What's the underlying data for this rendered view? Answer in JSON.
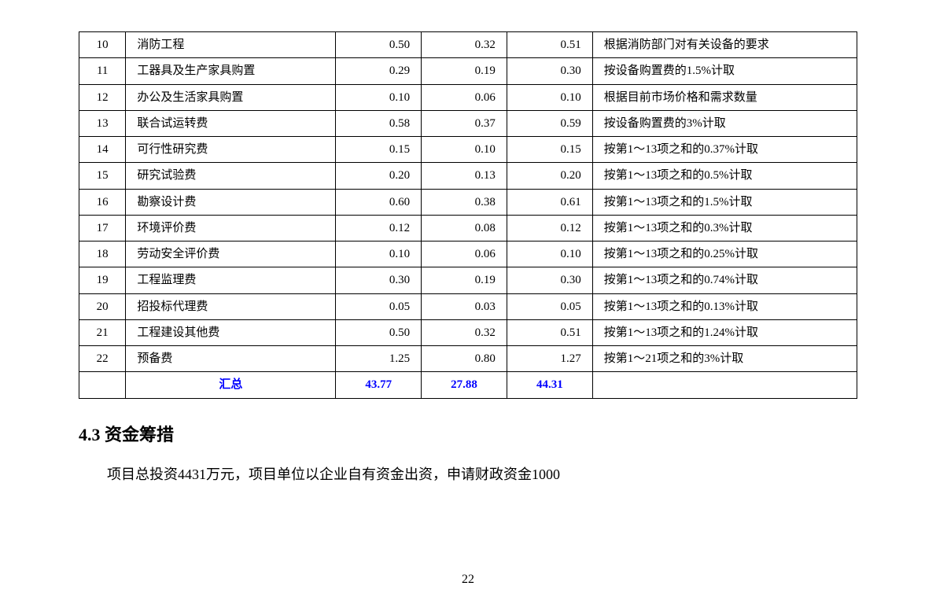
{
  "table": {
    "border_color": "#000000",
    "font_family": "SimSun",
    "font_size": 15,
    "summary_color": "#0000ff",
    "rows": [
      {
        "idx": "10",
        "proj": "消防工程",
        "v1": "0.50",
        "v2": "0.32",
        "v3": "0.51",
        "note": "根据消防部门对有关设备的要求"
      },
      {
        "idx": "11",
        "proj": "工器具及生产家具购置",
        "v1": "0.29",
        "v2": "0.19",
        "v3": "0.30",
        "note": "按设备购置费的1.5%计取"
      },
      {
        "idx": "12",
        "proj": "办公及生活家具购置",
        "v1": "0.10",
        "v2": "0.06",
        "v3": "0.10",
        "note": "根据目前市场价格和需求数量"
      },
      {
        "idx": "13",
        "proj": "联合试运转费",
        "v1": "0.58",
        "v2": "0.37",
        "v3": "0.59",
        "note": "按设备购置费的3%计取"
      },
      {
        "idx": "14",
        "proj": "可行性研究费",
        "v1": "0.15",
        "v2": "0.10",
        "v3": "0.15",
        "note": "按第1～13项之和的0.37%计取"
      },
      {
        "idx": "15",
        "proj": "研究试验费",
        "v1": "0.20",
        "v2": "0.13",
        "v3": "0.20",
        "note": "按第1～13项之和的0.5%计取"
      },
      {
        "idx": "16",
        "proj": "勘察设计费",
        "v1": "0.60",
        "v2": "0.38",
        "v3": "0.61",
        "note": "按第1～13项之和的1.5%计取"
      },
      {
        "idx": "17",
        "proj": "环境评价费",
        "v1": "0.12",
        "v2": "0.08",
        "v3": "0.12",
        "note": "按第1～13项之和的0.3%计取"
      },
      {
        "idx": "18",
        "proj": "劳动安全评价费",
        "v1": "0.10",
        "v2": "0.06",
        "v3": "0.10",
        "note": "按第1～13项之和的0.25%计取"
      },
      {
        "idx": "19",
        "proj": "工程监理费",
        "v1": "0.30",
        "v2": "0.19",
        "v3": "0.30",
        "note": "按第1～13项之和的0.74%计取"
      },
      {
        "idx": "20",
        "proj": "招投标代理费",
        "v1": "0.05",
        "v2": "0.03",
        "v3": "0.05",
        "note": "按第1～13项之和的0.13%计取"
      },
      {
        "idx": "21",
        "proj": "工程建设其他费",
        "v1": "0.50",
        "v2": "0.32",
        "v3": "0.51",
        "note": "按第1～13项之和的1.24%计取"
      },
      {
        "idx": "22",
        "proj": "预备费",
        "v1": "1.25",
        "v2": "0.80",
        "v3": "1.27",
        "note": "按第1～21项之和的3%计取"
      },
      {
        "idx": "",
        "proj": "汇总",
        "v1": "43.77",
        "v2": "27.88",
        "v3": "44.31",
        "note": "",
        "summary": true
      }
    ]
  },
  "section": {
    "title": "4.3 资金筹措",
    "paragraph": "项目总投资4431万元，项目单位以企业自有资金出资，申请财政资金1000"
  },
  "page_number": "22"
}
